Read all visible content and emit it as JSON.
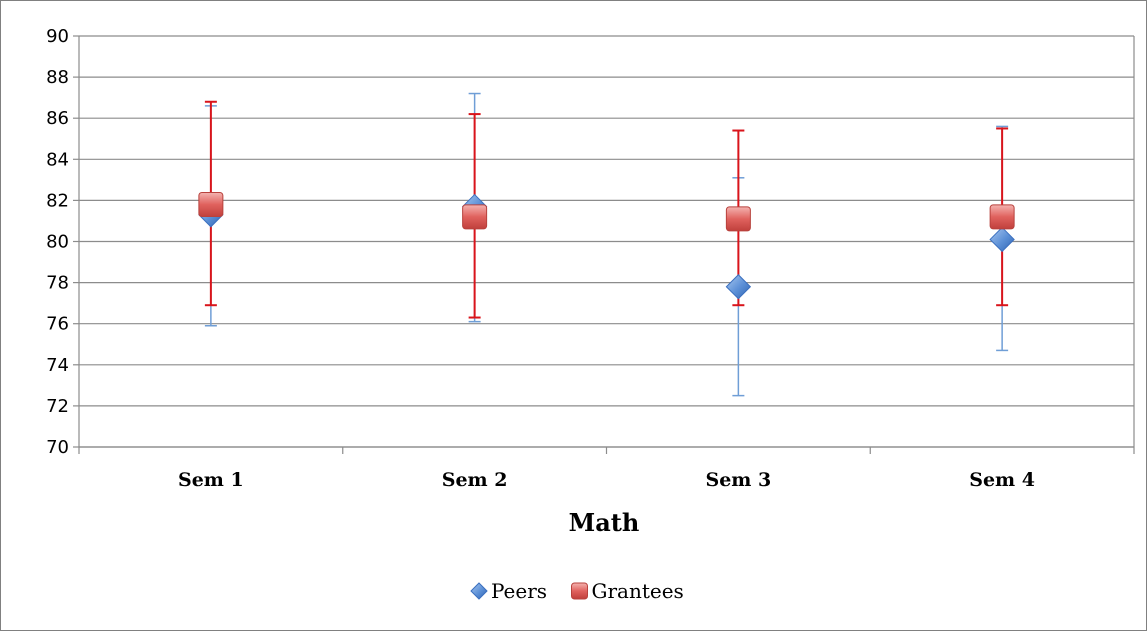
{
  "chart_data": {
    "type": "scatter",
    "categories": [
      "Sem 1",
      "Sem 2",
      "Sem 3",
      "Sem 4"
    ],
    "xlabel": "Math",
    "ylabel": "",
    "title": "",
    "ylim": [
      70,
      90
    ],
    "y_ticks": [
      70,
      72,
      74,
      76,
      78,
      80,
      82,
      84,
      86,
      88,
      90
    ],
    "grid": "horizontal",
    "legend_position": "bottom",
    "series": [
      {
        "name": "Peers",
        "marker": "diamond",
        "color": "#5b8fd6",
        "error_bar_color": "#6f9ed6",
        "values": [
          81.3,
          81.7,
          77.8,
          80.1
        ],
        "error_low": [
          75.9,
          76.1,
          72.5,
          74.7
        ],
        "error_high": [
          86.6,
          87.2,
          83.1,
          85.6
        ]
      },
      {
        "name": "Grantees",
        "marker": "square",
        "color": "#e0625e",
        "error_bar_color": "#d9141b",
        "values": [
          81.8,
          81.2,
          81.1,
          81.2
        ],
        "error_low": [
          76.9,
          76.3,
          76.9,
          76.9
        ],
        "error_high": [
          86.8,
          86.2,
          85.4,
          85.5
        ]
      }
    ]
  }
}
